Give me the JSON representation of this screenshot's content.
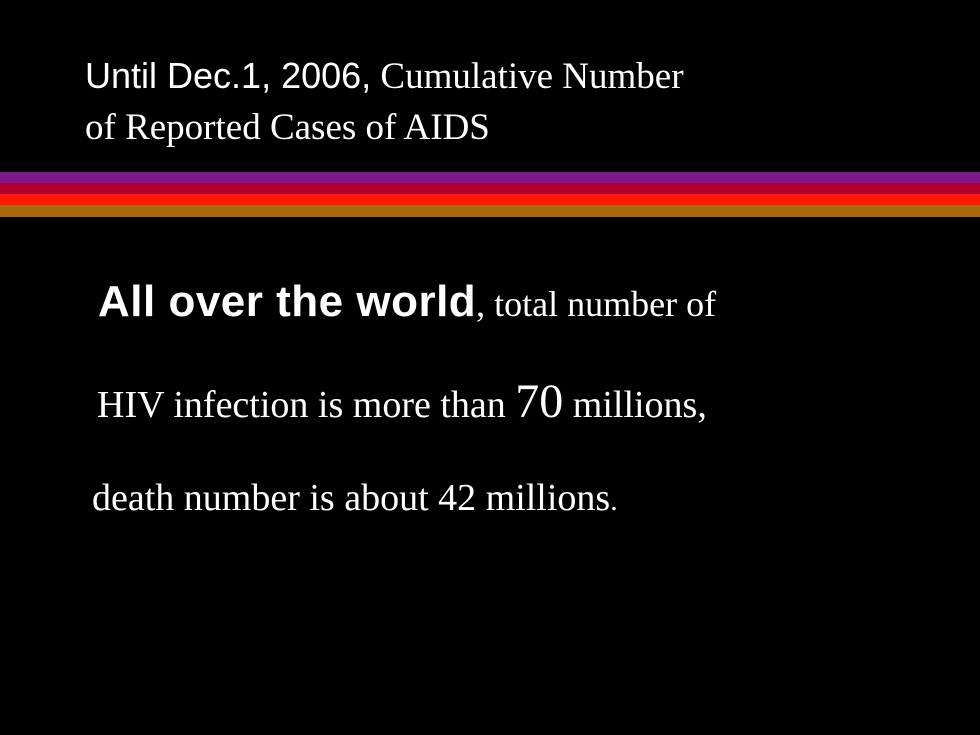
{
  "header": {
    "title_line1": {
      "lead": "Until Dec.1, 2006,",
      "rest": "Cumulative Number"
    },
    "title_line2": "of Reported Cases of AIDS"
  },
  "body": {
    "lines": [
      [
        "All over the world",
        ", total number of"
      ],
      [
        "HIV infection is more than",
        "70",
        "millions,"
      ],
      [
        "death number is about 42 millions",
        "."
      ]
    ]
  }
}
